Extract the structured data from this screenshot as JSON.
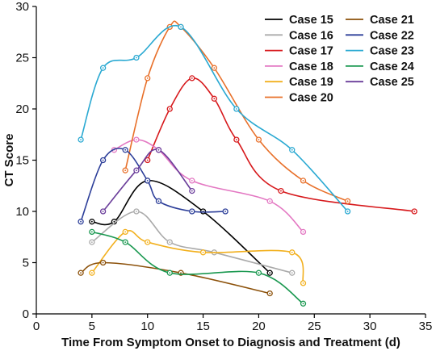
{
  "chart_data": {
    "type": "line",
    "title": "",
    "xlabel": "Time From Symptom Onset to Diagnosis and Treatment (d)",
    "ylabel": "CT Score",
    "xlim": [
      0,
      35
    ],
    "ylim": [
      0,
      30
    ],
    "xticks": [
      0,
      5,
      10,
      15,
      20,
      25,
      30,
      35
    ],
    "yticks": [
      0,
      5,
      10,
      15,
      20,
      25,
      30
    ],
    "grid": false,
    "legend_position": "top-right",
    "series": [
      {
        "name": "Case 15",
        "color": "#000000",
        "x": [
          5,
          7,
          10,
          15,
          21
        ],
        "y": [
          9,
          9,
          13,
          10,
          4
        ]
      },
      {
        "name": "Case 16",
        "color": "#aaaaaa",
        "x": [
          5,
          9,
          12,
          16,
          23
        ],
        "y": [
          7,
          10,
          7,
          6,
          4
        ]
      },
      {
        "name": "Case 17",
        "color": "#d7191c",
        "x": [
          10,
          12,
          14,
          16,
          18,
          22,
          34
        ],
        "y": [
          15,
          20,
          23,
          21,
          17,
          12,
          10
        ]
      },
      {
        "name": "Case 18",
        "color": "#e377c2",
        "x": [
          7,
          9,
          11,
          14,
          21,
          24
        ],
        "y": [
          16,
          17,
          16,
          13,
          11,
          8
        ]
      },
      {
        "name": "Case 19",
        "color": "#f2b01e",
        "x": [
          5,
          8,
          10,
          15,
          23,
          24
        ],
        "y": [
          4,
          8,
          7,
          6,
          6,
          3
        ]
      },
      {
        "name": "Case 20",
        "color": "#e8702a",
        "x": [
          8,
          10,
          12,
          13,
          16,
          20,
          24,
          28
        ],
        "y": [
          14,
          23,
          28,
          28,
          24,
          17,
          13,
          11
        ]
      },
      {
        "name": "Case 21",
        "color": "#8c510a",
        "x": [
          4,
          6,
          13,
          21
        ],
        "y": [
          4,
          5,
          4,
          2
        ]
      },
      {
        "name": "Case 22",
        "color": "#2c3e99",
        "x": [
          4,
          6,
          8,
          10,
          11,
          14,
          17
        ],
        "y": [
          9,
          15,
          16,
          13,
          11,
          10,
          10
        ]
      },
      {
        "name": "Case 23",
        "color": "#2aa9d2",
        "x": [
          4,
          6,
          9,
          13,
          18,
          23,
          28
        ],
        "y": [
          17,
          24,
          25,
          28,
          20,
          16,
          10
        ]
      },
      {
        "name": "Case 24",
        "color": "#1a9850",
        "x": [
          5,
          8,
          12,
          20,
          24
        ],
        "y": [
          8,
          7,
          4,
          4,
          1
        ]
      },
      {
        "name": "Case 25",
        "color": "#6a3d9a",
        "x": [
          6,
          9,
          11,
          14
        ],
        "y": [
          10,
          14,
          16,
          12
        ]
      }
    ]
  }
}
